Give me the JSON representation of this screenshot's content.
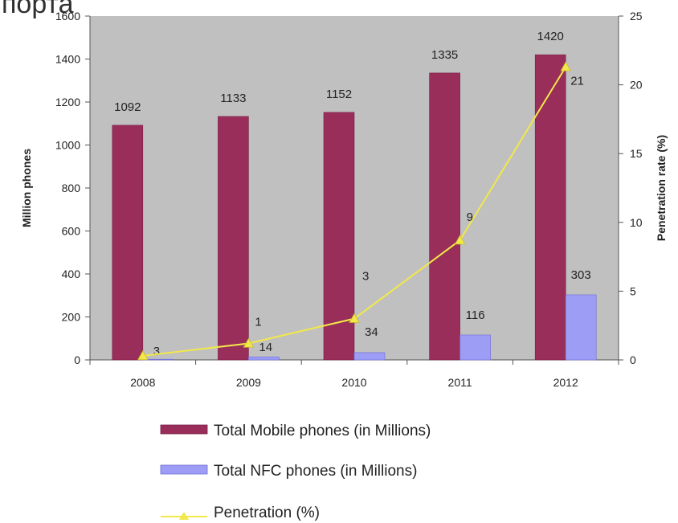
{
  "page": {
    "partial_title": "порта"
  },
  "chart_data": {
    "type": "bar",
    "categories": [
      "2008",
      "2009",
      "2010",
      "2011",
      "2012"
    ],
    "series": [
      {
        "name": "Total Mobile phones (in Millions)",
        "type": "bar",
        "axis": "left",
        "values": [
          1092,
          1133,
          1152,
          1335,
          1420
        ],
        "labels": [
          "1092",
          "1133",
          "1152",
          "1335",
          "1420"
        ],
        "color": "#9a2e5a"
      },
      {
        "name": "Total NFC phones (in Millions)",
        "type": "bar",
        "axis": "left",
        "values": [
          3,
          14,
          34,
          116,
          303
        ],
        "labels": [
          "3",
          "14",
          "34",
          "116",
          "303"
        ],
        "color": "#9d9df5"
      },
      {
        "name": "Penetration (%)",
        "type": "line",
        "axis": "right",
        "values": [
          0.3,
          1.2,
          3.0,
          8.7,
          21.3
        ],
        "labels": [
          "",
          "1",
          "3",
          "9",
          "21"
        ],
        "color": "#f2e84a"
      }
    ],
    "ylabel": "Million phones",
    "y2label": "Penetration rate (%)",
    "ylim": [
      0,
      1600
    ],
    "y2lim": [
      0,
      25
    ],
    "yticks": [
      "0",
      "200",
      "400",
      "600",
      "800",
      "1000",
      "1200",
      "1400",
      "1600"
    ],
    "y2ticks": [
      "0",
      "5",
      "10",
      "15",
      "20",
      "25"
    ],
    "plot_background": "#c0c0c0",
    "grid": false,
    "legend_position": "bottom"
  }
}
